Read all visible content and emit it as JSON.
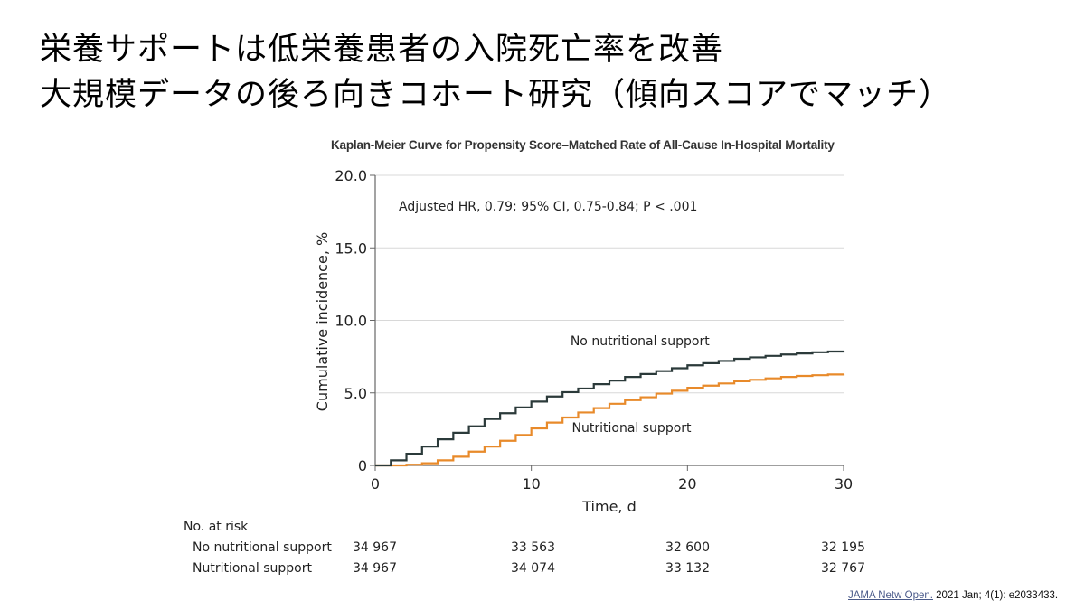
{
  "slide": {
    "title_line1": "栄養サポートは低栄養患者の入院死亡率を改善",
    "title_line2": "大規模データの後ろ向きコホート研究（傾向スコアでマッチ）"
  },
  "citation": {
    "journal_link": "JAMA Netw Open.",
    "details": " 2021 Jan; 4(1): e2033433."
  },
  "risk_table": {
    "header": "No. at risk",
    "rows": [
      {
        "label": "No nutritional support",
        "values": [
          "34 967",
          "33 563",
          "32 600",
          "32 195"
        ]
      },
      {
        "label": "Nutritional support",
        "values": [
          "34 967",
          "34 074",
          "33 132",
          "32 767"
        ]
      }
    ]
  },
  "chart_data": {
    "type": "line",
    "subtype": "kaplan-meier-step",
    "title": "Kaplan-Meier Curve for Propensity Score–Matched Rate of All-Cause In-Hospital Mortality",
    "annotation": "Adjusted HR, 0.79; 95% CI, 0.75-0.84; P < .001",
    "xlabel": "Time, d",
    "ylabel": "Cumulative incidence, %",
    "xlim": [
      0,
      30
    ],
    "ylim": [
      0,
      20
    ],
    "xticks": [
      "0",
      "10",
      "20",
      "30"
    ],
    "yticks": [
      "0",
      "5.0",
      "10.0",
      "15.0",
      "20.0"
    ],
    "grid": "horizontal",
    "x": [
      0,
      1,
      2,
      3,
      4,
      5,
      6,
      7,
      8,
      9,
      10,
      11,
      12,
      13,
      14,
      15,
      16,
      17,
      18,
      19,
      20,
      21,
      22,
      23,
      24,
      25,
      26,
      27,
      28,
      29,
      30
    ],
    "series": [
      {
        "name": "No nutritional support",
        "color": "#2b3a3a",
        "label_position": {
          "x": 12.5,
          "y": 8.3
        },
        "values": [
          0,
          0.35,
          0.8,
          1.3,
          1.8,
          2.25,
          2.7,
          3.2,
          3.6,
          4.0,
          4.4,
          4.75,
          5.05,
          5.3,
          5.6,
          5.85,
          6.1,
          6.3,
          6.5,
          6.7,
          6.9,
          7.05,
          7.2,
          7.35,
          7.45,
          7.55,
          7.65,
          7.72,
          7.8,
          7.85,
          7.9
        ]
      },
      {
        "name": "Nutritional support",
        "color": "#e88a2a",
        "label_position": {
          "x": 12.6,
          "y": 2.3
        },
        "values": [
          0,
          0,
          0.05,
          0.15,
          0.35,
          0.6,
          0.95,
          1.3,
          1.7,
          2.1,
          2.55,
          2.95,
          3.3,
          3.65,
          3.95,
          4.25,
          4.5,
          4.7,
          4.95,
          5.15,
          5.35,
          5.5,
          5.65,
          5.8,
          5.9,
          6.0,
          6.1,
          6.17,
          6.22,
          6.27,
          6.3
        ]
      }
    ]
  }
}
